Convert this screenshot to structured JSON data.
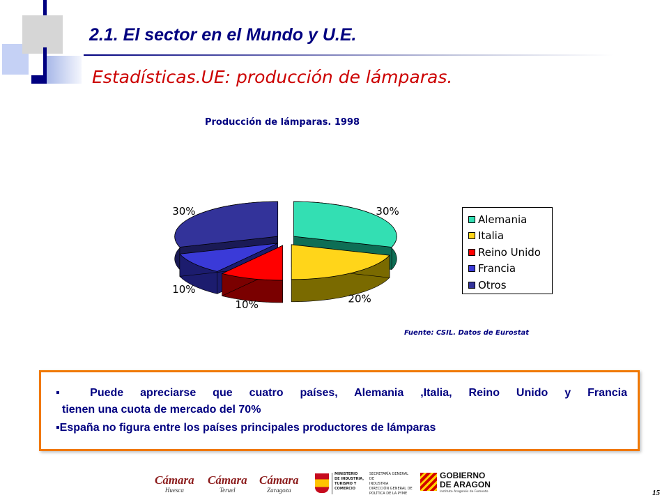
{
  "header": {
    "title": "2.1. El sector en el Mundo y  U.E.",
    "subtitle": "Estadísticas.UE: producción de lámparas."
  },
  "chart_data": {
    "type": "pie",
    "title": "Producción de lámparas. 1998",
    "categories": [
      "Alemania",
      "Italia",
      "Reino Unido",
      "Francia",
      "Otros"
    ],
    "values": [
      30,
      20,
      10,
      10,
      30
    ],
    "value_labels": [
      "30%",
      "20%",
      "10%",
      "10%",
      "30%"
    ],
    "colors": [
      "#33dfb3",
      "#ffd51a",
      "#ff0000",
      "#3a3ad8",
      "#33339a"
    ],
    "side_colors": [
      "#0e6e55",
      "#7a6a00",
      "#7a0000",
      "#1c1c6e",
      "#1a1a55"
    ],
    "style": "3d-exploded",
    "legend_position": "right"
  },
  "source": "Fuente: CSIL. Datos de Eurostat",
  "summary": {
    "bullet_marker": "▪",
    "bullet1_line1": "Puede apreciarse que cuatro países, Alemania ,Italia, Reino Unido y Francia",
    "bullet1_line2": "tienen una cuota de mercado del 70%",
    "bullet2": "España no figura entre los países principales productores de lámparas"
  },
  "footer": {
    "logos": [
      {
        "name": "Cámara",
        "city": "Huesca"
      },
      {
        "name": "Cámara",
        "city": "Teruel"
      },
      {
        "name": "Cámara",
        "city": "Zaragoza"
      }
    ],
    "ministry_lines": [
      "MINISTERIO",
      "DE INDUSTRIA,",
      "TURISMO Y",
      "COMERCIO"
    ],
    "secretaria_lines": [
      "SECRETARÍA GENERAL DE",
      "INDUSTRIA",
      "DIRECCIÓN GENERAL DE",
      "POLÍTICA DE LA PYME"
    ],
    "gobierno_line1": "GOBIERNO",
    "gobierno_line2": "DE ARAGON",
    "gobierno_sub": "Instituto Aragonés de Fomento",
    "page_number": "15"
  }
}
